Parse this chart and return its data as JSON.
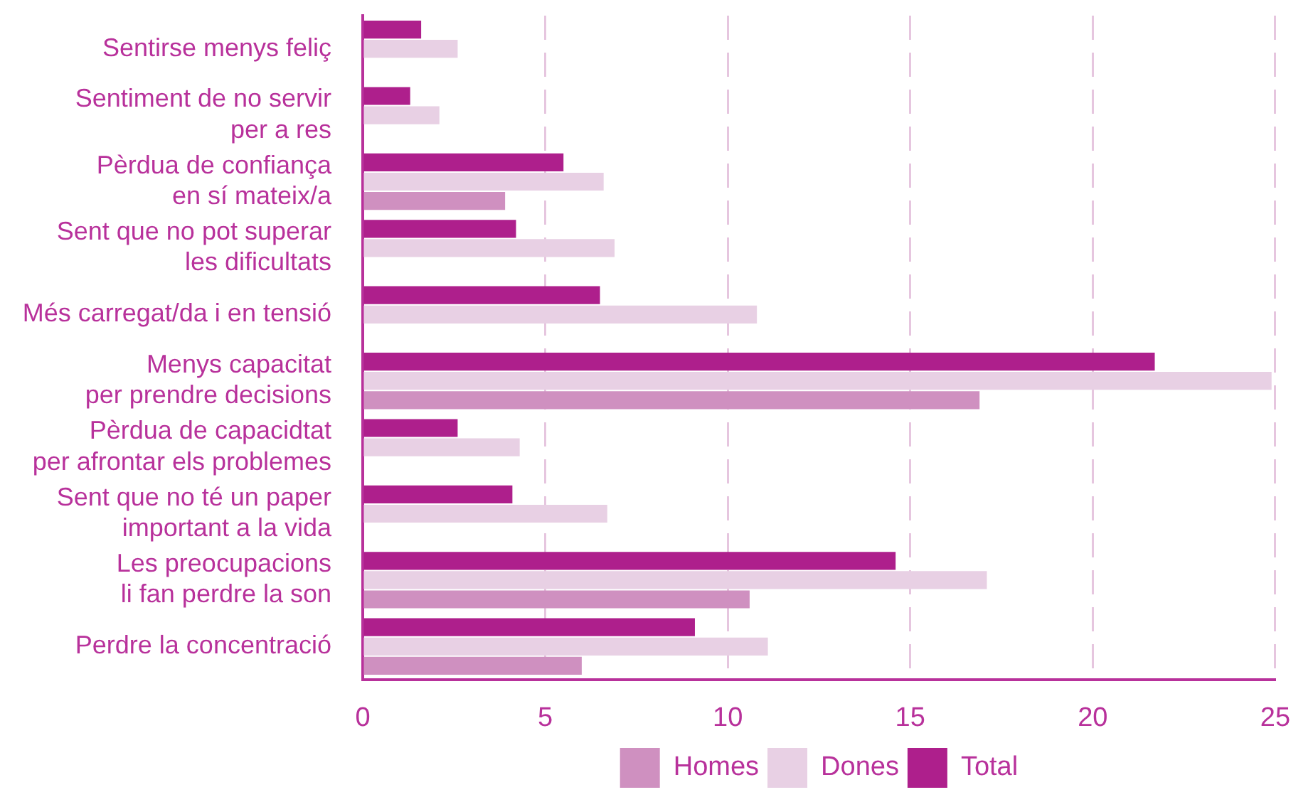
{
  "chart_data": {
    "type": "bar",
    "orientation": "horizontal",
    "categories": [
      "Sentirse menys feliç",
      "Sentiment de no servir\nper a res",
      "Pèrdua de confiança\nen sí mateix/a",
      "Sent que no pot superar\nles dificultats",
      "Més carregat/da i en tensió",
      "Menys capacitat\nper prendre decisions",
      "Pèrdua de capacidtat\nper afrontar els problemes",
      "Sent que no té un paper\nimportant a la vida",
      "Les preocupacions\nli fan perdre la son",
      "Perdre la concentració"
    ],
    "series": [
      {
        "name": "Total",
        "color": "#ae1f8c",
        "values": [
          1.6,
          1.3,
          5.5,
          4.2,
          6.5,
          21.7,
          2.6,
          4.1,
          14.6,
          9.1
        ]
      },
      {
        "name": "Dones",
        "color": "#e8d0e4",
        "values": [
          2.6,
          2.1,
          6.6,
          6.9,
          10.8,
          24.9,
          4.3,
          6.7,
          17.1,
          11.1
        ]
      },
      {
        "name": "Homes",
        "color": "#cf90c0",
        "values": [
          null,
          null,
          3.9,
          null,
          null,
          16.9,
          null,
          null,
          10.6,
          6.0
        ]
      }
    ],
    "xlim": [
      0,
      25
    ],
    "xticks": [
      0,
      5,
      10,
      15,
      20,
      25
    ],
    "grid": "x",
    "legend": "bottom"
  }
}
